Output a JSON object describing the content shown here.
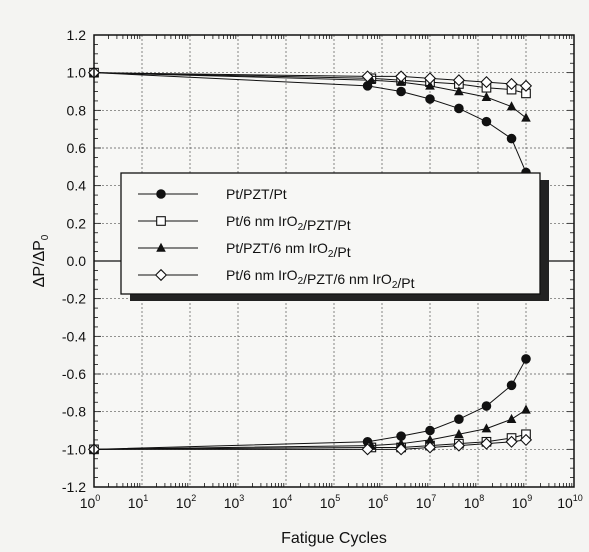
{
  "chart_data": {
    "type": "line",
    "xscale": "log",
    "xlabel": "Fatigue Cycles",
    "ylabel_parts": {
      "a": "ΔP/ΔP",
      "sub": "0"
    },
    "xlim": [
      1,
      10000000000
    ],
    "ylim": [
      -1.2,
      1.2
    ],
    "grid": true,
    "legend_placement": "center-left",
    "x_ticks": [
      {
        "base": "10",
        "exp": "0"
      },
      {
        "base": "10",
        "exp": "1"
      },
      {
        "base": "10",
        "exp": "2"
      },
      {
        "base": "10",
        "exp": "3"
      },
      {
        "base": "10",
        "exp": "4"
      },
      {
        "base": "10",
        "exp": "5"
      },
      {
        "base": "10",
        "exp": "6"
      },
      {
        "base": "10",
        "exp": "7"
      },
      {
        "base": "10",
        "exp": "8"
      },
      {
        "base": "10",
        "exp": "9"
      },
      {
        "base": "10",
        "exp": "10"
      }
    ],
    "y_ticks": [
      "1.2",
      "1.0",
      "0.8",
      "0.6",
      "0.4",
      "0.2",
      "0.0",
      "-0.2",
      "-0.4",
      "-0.6",
      "-0.8",
      "-1.0",
      "-1.2"
    ],
    "series": [
      {
        "label_parts": [
          {
            "t": "Pt/PZT/Pt"
          }
        ],
        "marker": "circle-filled",
        "x": [
          1,
          500000,
          2500000,
          10000000,
          40000000,
          150000000,
          500000000,
          1000000000
        ],
        "y_pos": [
          1.0,
          0.93,
          0.9,
          0.86,
          0.81,
          0.74,
          0.65,
          0.47
        ],
        "y_neg": [
          -1.0,
          -0.96,
          -0.93,
          -0.9,
          -0.84,
          -0.77,
          -0.66,
          -0.52
        ]
      },
      {
        "label_parts": [
          {
            "t": "Pt/6 nm IrO"
          },
          {
            "t": "2",
            "sub": true
          },
          {
            "t": "/PZT/Pt"
          }
        ],
        "marker": "square-open",
        "x": [
          1,
          600000,
          2500000,
          10000000,
          40000000,
          150000000,
          500000000,
          1000000000
        ],
        "y_pos": [
          1.0,
          0.97,
          0.96,
          0.95,
          0.94,
          0.92,
          0.91,
          0.89
        ],
        "y_neg": [
          -1.0,
          -0.99,
          -0.99,
          -0.98,
          -0.97,
          -0.96,
          -0.94,
          -0.92
        ]
      },
      {
        "label_parts": [
          {
            "t": "Pt/PZT/6 nm IrO"
          },
          {
            "t": "2",
            "sub": true
          },
          {
            "t": "/Pt"
          }
        ],
        "marker": "triangle-filled",
        "x": [
          1,
          600000,
          2500000,
          10000000,
          40000000,
          150000000,
          500000000,
          1000000000
        ],
        "y_pos": [
          1.0,
          0.96,
          0.95,
          0.93,
          0.9,
          0.87,
          0.82,
          0.76
        ],
        "y_neg": [
          -1.0,
          -0.98,
          -0.97,
          -0.95,
          -0.92,
          -0.89,
          -0.84,
          -0.79
        ]
      },
      {
        "label_parts": [
          {
            "t": "Pt/6 nm IrO"
          },
          {
            "t": "2",
            "sub": true
          },
          {
            "t": "/PZT/6 nm IrO"
          },
          {
            "t": "2",
            "sub": true
          },
          {
            "t": "/Pt"
          }
        ],
        "marker": "diamond-open",
        "x": [
          1,
          500000,
          2500000,
          10000000,
          40000000,
          150000000,
          500000000,
          1000000000
        ],
        "y_pos": [
          1.0,
          0.98,
          0.98,
          0.97,
          0.96,
          0.95,
          0.94,
          0.93
        ],
        "y_neg": [
          -1.0,
          -1.0,
          -1.0,
          -0.99,
          -0.98,
          -0.97,
          -0.96,
          -0.95
        ]
      }
    ]
  }
}
